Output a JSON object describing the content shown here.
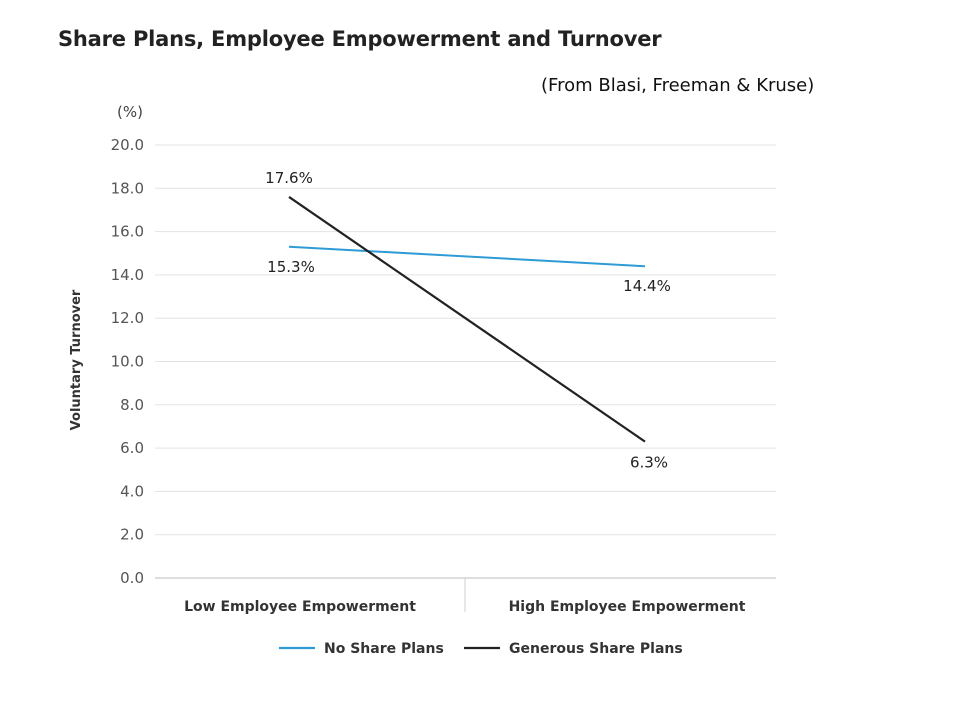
{
  "title": "Share Plans, Employee Empowerment and Turnover",
  "source": "(From Blasi, Freeman & Kruse)",
  "chart_data": {
    "type": "line",
    "title": "Share Plans, Employee Empowerment and Turnover",
    "subtitle": "(From Blasi, Freeman & Kruse)",
    "ylabel": "Voluntary Turnover",
    "yunit": "(%)",
    "xlabel": "",
    "ylim": [
      0,
      20
    ],
    "yticks": [
      "0.0",
      "2.0",
      "4.0",
      "6.0",
      "8.0",
      "10.0",
      "12.0",
      "14.0",
      "16.0",
      "18.0",
      "20.0"
    ],
    "categories": [
      "Low Employee Empowerment",
      "High Employee Empowerment"
    ],
    "series": [
      {
        "name": "No Share Plans",
        "color": "#2e9bd6",
        "values": [
          15.3,
          14.4
        ],
        "labels": [
          "15.3%",
          "14.4%"
        ]
      },
      {
        "name": "Generous Share Plans",
        "color": "#222222",
        "values": [
          17.6,
          6.3
        ],
        "labels": [
          "17.6%",
          "6.3%"
        ]
      }
    ],
    "grid": true,
    "legend": "bottom"
  }
}
